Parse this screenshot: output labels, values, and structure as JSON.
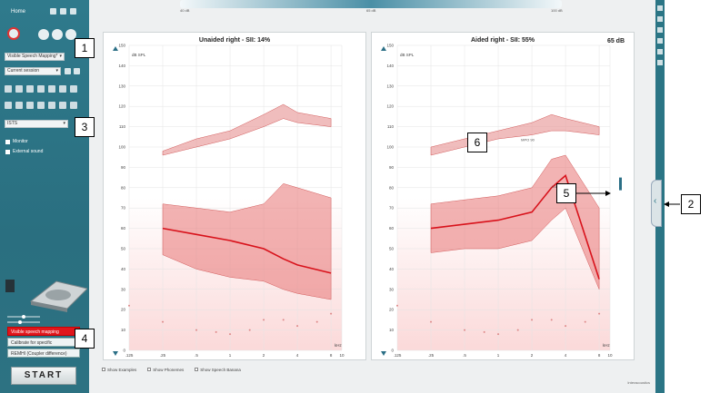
{
  "sidebar": {
    "title": "Home",
    "speech_mapping_select": "Visible Speech Mapping*",
    "session_select": "Current session",
    "signal_select": "ISTS",
    "checks": [
      "Monitor",
      "External sound"
    ],
    "mode_list": [
      "Visible speech mapping",
      "Calibrate for specific",
      "REMHI (Coupler difference)"
    ],
    "start_label": "START"
  },
  "topbar": {
    "left_label": "40 dB",
    "mid_label": "65 dB",
    "right_label": "100 dB"
  },
  "panels": {
    "unaided_title": "Unaided right - SII: 14%",
    "aided_title": "Aided right - SII: 55%",
    "level_readout": "65 dB",
    "y_unit": "dB SPL",
    "x_unit": "kHz",
    "y_ticks": [
      "150",
      "140",
      "130",
      "120",
      "110",
      "100",
      "90",
      "80",
      "70",
      "60",
      "50",
      "40",
      "30",
      "20",
      "10",
      "0"
    ],
    "x_ticks": [
      ".125",
      ".25",
      ".5",
      "1",
      "2",
      "4",
      "8",
      "10"
    ],
    "curve_label_aided_top": "MPO 90",
    "curve_label_aided_mid": "LTASS"
  },
  "bottom_options": [
    "Show Examples",
    "Show Phonemes",
    "Show Speech Banana"
  ],
  "footer": "Interacoustics",
  "callouts": [
    "1",
    "2",
    "3",
    "4",
    "5",
    "6"
  ],
  "colors": {
    "sidebar": "#2f7a8c",
    "accent_red": "#e0161c",
    "panel_bg": "#ffffff"
  },
  "chart_data": [
    {
      "type": "area",
      "title": "Unaided right - SII: 14%",
      "ylabel": "dB SPL",
      "xlabel": "kHz",
      "ylim": [
        0,
        150
      ],
      "x": [
        0.25,
        0.5,
        1,
        2,
        3,
        4,
        8
      ],
      "series": [
        {
          "values": [
            60,
            57,
            54,
            50,
            45,
            42,
            38
          ]
        }
      ],
      "areas": [
        {
          "upper": [
            98,
            104,
            108,
            116,
            121,
            117,
            114
          ],
          "lower": [
            96,
            100,
            104,
            110,
            114,
            112,
            110
          ]
        },
        {
          "upper": [
            72,
            70,
            68,
            72,
            82,
            80,
            75
          ],
          "lower": [
            47,
            40,
            36,
            34,
            30,
            28,
            25
          ]
        }
      ],
      "points": {
        "x": [
          0.125,
          0.25,
          0.5,
          0.75,
          1,
          1.5,
          2,
          3,
          4,
          6,
          8
        ],
        "values": [
          22,
          14,
          10,
          9,
          8,
          10,
          15,
          15,
          12,
          14,
          18
        ]
      }
    },
    {
      "type": "area",
      "title": "Aided right - SII: 55%",
      "ylabel": "dB SPL",
      "xlabel": "kHz",
      "ylim": [
        0,
        150
      ],
      "x": [
        0.25,
        0.5,
        1,
        2,
        3,
        4,
        8
      ],
      "series": [
        {
          "values": [
            60,
            62,
            64,
            68,
            80,
            86,
            35
          ]
        }
      ],
      "areas": [
        {
          "upper": [
            100,
            104,
            108,
            112,
            116,
            114,
            110
          ],
          "lower": [
            96,
            100,
            104,
            106,
            108,
            108,
            106
          ]
        },
        {
          "upper": [
            72,
            74,
            76,
            80,
            94,
            96,
            70
          ],
          "lower": [
            48,
            50,
            50,
            54,
            64,
            70,
            30
          ]
        }
      ],
      "points": {
        "x": [
          0.125,
          0.25,
          0.5,
          0.75,
          1,
          1.5,
          2,
          3,
          4,
          6,
          8
        ],
        "values": [
          22,
          14,
          10,
          9,
          8,
          10,
          15,
          15,
          12,
          14,
          18
        ]
      }
    }
  ]
}
